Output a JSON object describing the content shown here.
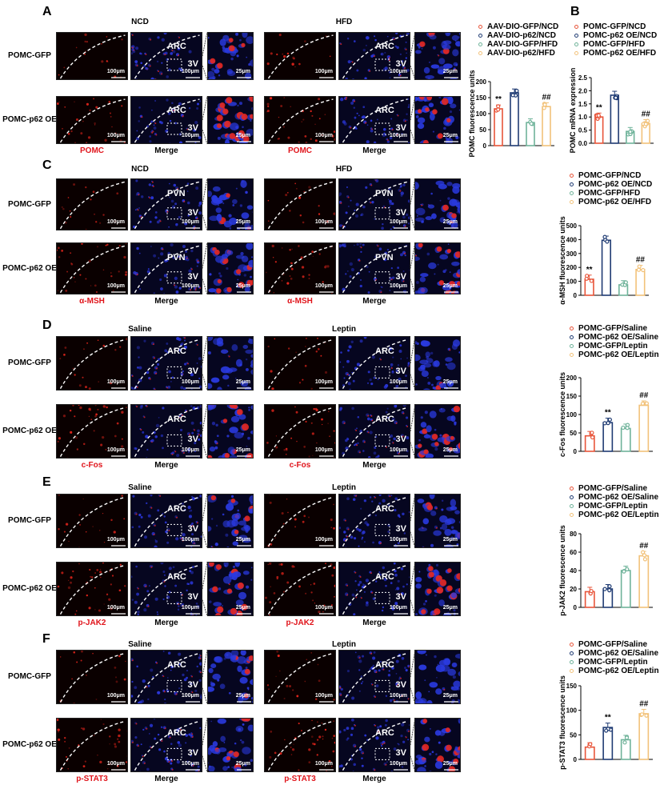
{
  "panels": [
    {
      "letter": "A",
      "top": 6,
      "h": 60,
      "conds": [
        "NCD",
        "HFD"
      ],
      "rows": [
        "POMC-GFP",
        "POMC-p62 OE"
      ],
      "cols": [
        "POMC",
        "Merge",
        "POMC",
        "Merge"
      ],
      "region": "ARC",
      "third": "3V",
      "s100": "100μm",
      "s25": "25μm",
      "ycolor": "#c43a1e"
    },
    {
      "letter": "C",
      "top": 204,
      "h": 65,
      "conds": [
        "NCD",
        "HFD"
      ],
      "rows": [
        "POMC-GFP",
        "POMC-p62 OE"
      ],
      "cols": [
        "α-MSH",
        "Merge",
        "α-MSH",
        "Merge"
      ],
      "region": "PVN",
      "third": "3V",
      "s100": "100μm",
      "s25": "25μm",
      "ycolor": "#c43a1e"
    },
    {
      "letter": "D",
      "top": 400,
      "h": 68,
      "conds": [
        "Saline",
        "Leptin"
      ],
      "rows": [
        "POMC-GFP",
        "POMC-p62 OE"
      ],
      "cols": [
        "c-Fos",
        "Merge",
        "c-Fos",
        "Merge"
      ],
      "region": "ARC",
      "third": "3V",
      "s100": "100μm",
      "s25": "25μm",
      "ycolor": "#c43a1e"
    },
    {
      "letter": "E",
      "top": 597,
      "h": 68,
      "conds": [
        "Saline",
        "Leptin"
      ],
      "rows": [
        "POMC-GFP",
        "POMC-p62 OE"
      ],
      "cols": [
        "p-JAK2",
        "Merge",
        "p-JAK2",
        "Merge"
      ],
      "region": "ARC",
      "third": "3V",
      "s100": "100μm",
      "s25": "25μm",
      "ycolor": "#c43a1e"
    },
    {
      "letter": "F",
      "top": 794,
      "h": 68,
      "conds": [
        "Saline",
        "Leptin"
      ],
      "rows": [
        "POMC-GFP",
        "POMC-p62 OE"
      ],
      "cols": [
        "p-STAT3",
        "Merge",
        "p-STAT3",
        "Merge"
      ],
      "region": "ARC",
      "third": "3V",
      "s100": "100μm",
      "s25": "25μm",
      "ycolor": "#c43a1e"
    }
  ],
  "panelB": {
    "letter": "B"
  },
  "colors": {
    "c1": "#e8553a",
    "c2": "#1f3b73",
    "c3": "#6fb39a",
    "c4": "#f2c27a"
  },
  "chart_data": [
    {
      "id": "A",
      "type": "bar",
      "ylabel": "POMC fluorescence units",
      "ylim": [
        0,
        200
      ],
      "yticks": [
        0,
        50,
        100,
        150,
        200
      ],
      "series": [
        {
          "name": "AAV-DIO-GFP/NCD",
          "values": [
            115
          ]
        },
        {
          "name": "AAV-DIO-p62/NCD",
          "values": [
            165
          ]
        },
        {
          "name": "AAV-DIO-GFP/HFD",
          "values": [
            72
          ]
        },
        {
          "name": "AAV-DIO-p62/HFD",
          "values": [
            122
          ]
        }
      ],
      "annotations": [
        "**",
        "",
        "",
        "##"
      ]
    },
    {
      "id": "B",
      "type": "bar",
      "ylabel": "POMC mRNA expression",
      "ylim": [
        0,
        2.5
      ],
      "yticks": [
        0.0,
        0.5,
        1.0,
        1.5,
        2.0,
        2.5
      ],
      "series": [
        {
          "name": "POMC-GFP/NCD",
          "values": [
            1.0
          ]
        },
        {
          "name": "POMC-p62 OE/NCD",
          "values": [
            1.83
          ]
        },
        {
          "name": "POMC-GFP/HFD",
          "values": [
            0.45
          ]
        },
        {
          "name": "POMC-p62 OE/HFD",
          "values": [
            0.75
          ]
        }
      ],
      "annotations": [
        "**",
        "",
        "",
        "##"
      ]
    },
    {
      "id": "C",
      "type": "bar",
      "ylabel": "α-MSH fluorescence units",
      "ylim": [
        0,
        500
      ],
      "yticks": [
        0,
        100,
        200,
        300,
        400,
        500
      ],
      "series": [
        {
          "name": "POMC-GFP/NCD",
          "values": [
            115
          ]
        },
        {
          "name": "POMC-p62 OE/NCD",
          "values": [
            395
          ]
        },
        {
          "name": "POMC-GFP/HFD",
          "values": [
            75
          ]
        },
        {
          "name": "POMC-p62 OE/HFD",
          "values": [
            185
          ]
        }
      ],
      "annotations": [
        "**",
        "",
        "",
        "##"
      ]
    },
    {
      "id": "D",
      "type": "bar",
      "ylabel": "c-Fos fluorescence units",
      "ylim": [
        0,
        200
      ],
      "yticks": [
        0,
        50,
        100,
        150,
        200
      ],
      "series": [
        {
          "name": "POMC-GFP/Saline",
          "values": [
            42
          ]
        },
        {
          "name": "POMC-p62 OE/Saline",
          "values": [
            78
          ]
        },
        {
          "name": "POMC-GFP/Leptin",
          "values": [
            62
          ]
        },
        {
          "name": "POMC-p62 OE/Leptin",
          "values": [
            125
          ]
        }
      ],
      "annotations": [
        "",
        "**",
        "",
        "##"
      ]
    },
    {
      "id": "E",
      "type": "bar",
      "ylabel": "p-JAK2 fluorescence units",
      "ylim": [
        0,
        80
      ],
      "yticks": [
        0,
        20,
        40,
        60,
        80
      ],
      "series": [
        {
          "name": "POMC-GFP/Saline",
          "values": [
            17
          ]
        },
        {
          "name": "POMC-p62 OE/Saline",
          "values": [
            20
          ]
        },
        {
          "name": "POMC-GFP/Leptin",
          "values": [
            40
          ]
        },
        {
          "name": "POMC-p62 OE/Leptin",
          "values": [
            56
          ]
        }
      ],
      "annotations": [
        "",
        "",
        "",
        "##"
      ]
    },
    {
      "id": "F",
      "type": "bar",
      "ylabel": "p-STAT3 fluorescence units",
      "ylim": [
        0,
        150
      ],
      "yticks": [
        0,
        50,
        100,
        150
      ],
      "series": [
        {
          "name": "POMC-GFP/Saline",
          "values": [
            25
          ]
        },
        {
          "name": "POMC-p62 OE/Saline",
          "values": [
            65
          ]
        },
        {
          "name": "POMC-GFP/Leptin",
          "values": [
            40
          ]
        },
        {
          "name": "POMC-p62 OE/Leptin",
          "values": [
            93
          ]
        }
      ],
      "annotations": [
        "",
        "**",
        "",
        "##"
      ]
    }
  ]
}
